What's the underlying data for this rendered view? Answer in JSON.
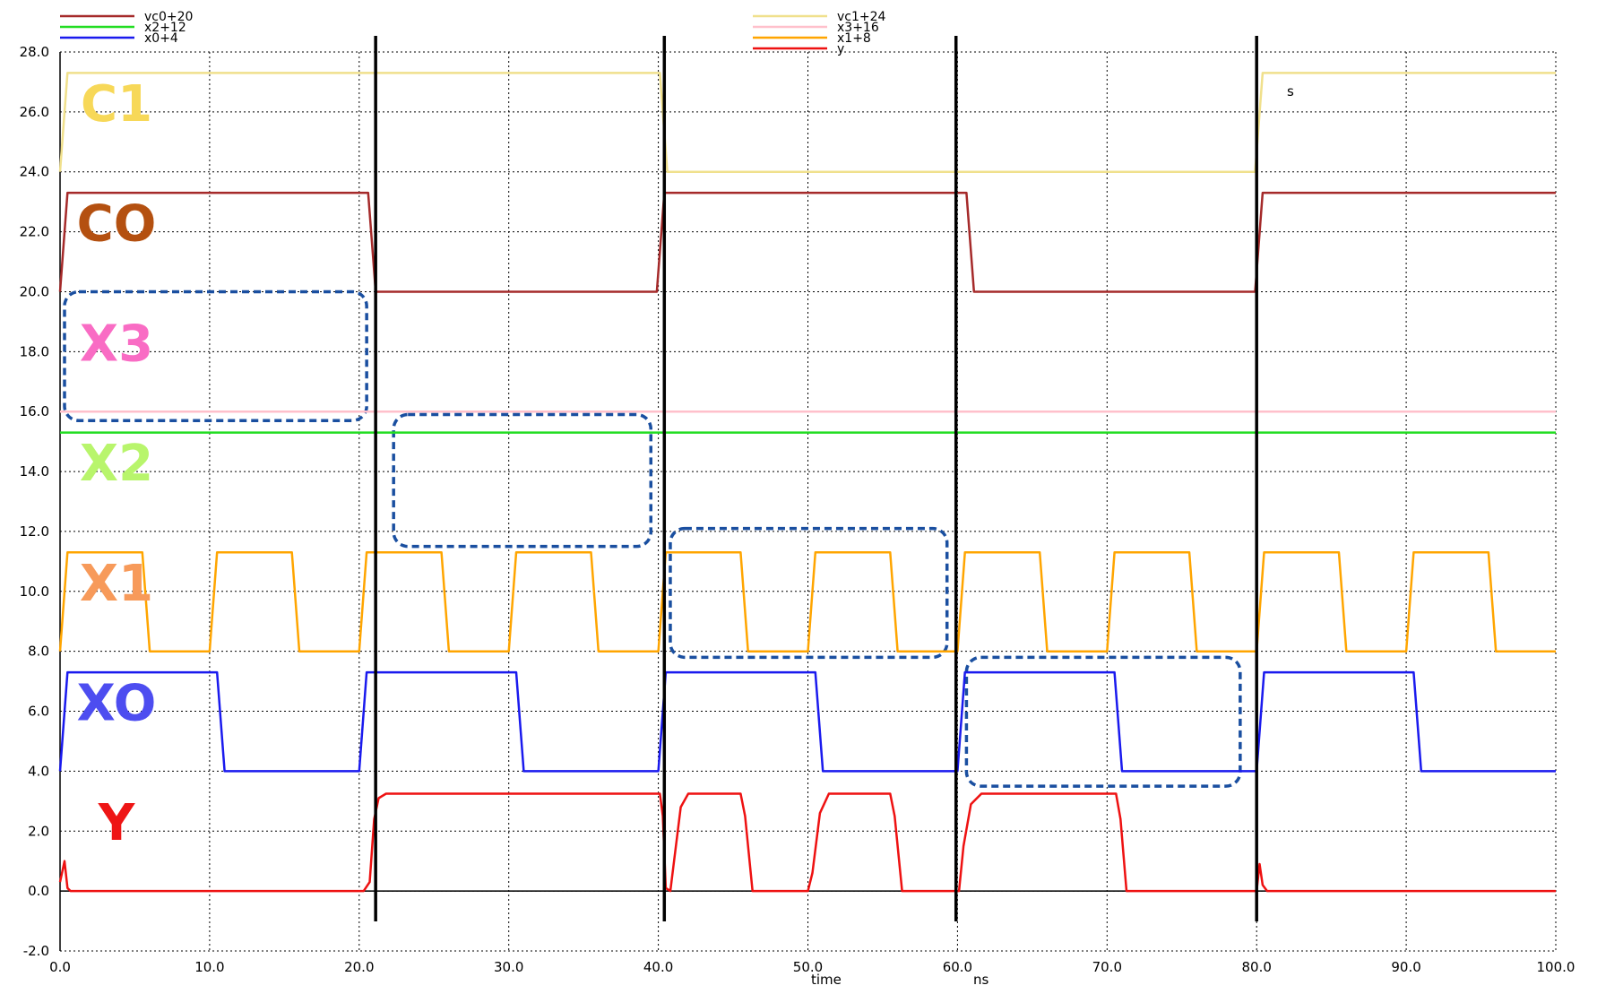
{
  "chart_data": {
    "type": "line",
    "xlabel": "time",
    "xunit": "ns",
    "xlim": [
      0,
      100
    ],
    "ylim": [
      -2,
      28
    ],
    "xticks": [
      "0.0",
      "10.0",
      "20.0",
      "30.0",
      "40.0",
      "50.0",
      "60.0",
      "70.0",
      "80.0",
      "90.0",
      "100.0"
    ],
    "yticks": [
      "-2.0",
      "0.0",
      "2.0",
      "4.0",
      "6.0",
      "8.0",
      "10.0",
      "12.0",
      "14.0",
      "16.0",
      "18.0",
      "20.0",
      "22.0",
      "24.0",
      "26.0",
      "28.0"
    ],
    "grid": true,
    "legend": [
      {
        "name": "vc0+20",
        "color": "#a52a2a"
      },
      {
        "name": "x2+12",
        "color": "#22dd22"
      },
      {
        "name": "x0+4",
        "color": "#1a1aee"
      },
      {
        "name": "vc1+24",
        "color": "#f0e08c"
      },
      {
        "name": "x3+16",
        "color": "#ffc0cb"
      },
      {
        "name": "x1+8",
        "color": "#ffa500"
      },
      {
        "name": "y",
        "color": "#ee1111"
      }
    ],
    "series": [
      {
        "name": "vc1+24",
        "color": "#f0e08c",
        "points": [
          [
            0,
            24
          ],
          [
            0.5,
            27.3
          ],
          [
            40.1,
            27.3
          ],
          [
            40.6,
            24
          ],
          [
            79.9,
            24
          ],
          [
            80.4,
            27.3
          ],
          [
            100,
            27.3
          ]
        ]
      },
      {
        "name": "vc0+20",
        "color": "#a52a2a",
        "points": [
          [
            0,
            20
          ],
          [
            0.5,
            23.3
          ],
          [
            20.6,
            23.3
          ],
          [
            21.1,
            20
          ],
          [
            39.9,
            20
          ],
          [
            40.4,
            23.3
          ],
          [
            60.6,
            23.3
          ],
          [
            61.1,
            20
          ],
          [
            79.9,
            20
          ],
          [
            80.4,
            23.3
          ],
          [
            100,
            23.3
          ]
        ]
      },
      {
        "name": "x3+16",
        "color": "#ffc0cb",
        "points": [
          [
            0,
            16
          ],
          [
            100,
            16
          ]
        ]
      },
      {
        "name": "x2+12",
        "color": "#22dd22",
        "points": [
          [
            0,
            15.3
          ],
          [
            100,
            15.3
          ]
        ]
      },
      {
        "name": "x1+8",
        "color": "#ffa500",
        "points": [
          [
            0,
            8
          ],
          [
            0.5,
            11.3
          ],
          [
            5.5,
            11.3
          ],
          [
            6,
            8
          ],
          [
            10,
            8
          ],
          [
            10.5,
            11.3
          ],
          [
            15.5,
            11.3
          ],
          [
            16,
            8
          ],
          [
            20,
            8
          ],
          [
            20.5,
            11.3
          ],
          [
            25.5,
            11.3
          ],
          [
            26,
            8
          ],
          [
            30,
            8
          ],
          [
            30.5,
            11.3
          ],
          [
            35.5,
            11.3
          ],
          [
            36,
            8
          ],
          [
            40,
            8
          ],
          [
            40.5,
            11.3
          ],
          [
            45.5,
            11.3
          ],
          [
            46,
            8
          ],
          [
            50,
            8
          ],
          [
            50.5,
            11.3
          ],
          [
            55.5,
            11.3
          ],
          [
            56,
            8
          ],
          [
            60,
            8
          ],
          [
            60.5,
            11.3
          ],
          [
            65.5,
            11.3
          ],
          [
            66,
            8
          ],
          [
            70,
            8
          ],
          [
            70.5,
            11.3
          ],
          [
            75.5,
            11.3
          ],
          [
            76,
            8
          ],
          [
            80,
            8
          ],
          [
            80.5,
            11.3
          ],
          [
            85.5,
            11.3
          ],
          [
            86,
            8
          ],
          [
            90,
            8
          ],
          [
            90.5,
            11.3
          ],
          [
            95.5,
            11.3
          ],
          [
            96,
            8
          ],
          [
            100,
            8
          ]
        ]
      },
      {
        "name": "x0+4",
        "color": "#1a1aee",
        "points": [
          [
            0,
            4
          ],
          [
            0.5,
            7.3
          ],
          [
            10.5,
            7.3
          ],
          [
            11,
            4
          ],
          [
            20,
            4
          ],
          [
            20.5,
            7.3
          ],
          [
            30.5,
            7.3
          ],
          [
            31,
            4
          ],
          [
            40,
            4
          ],
          [
            40.5,
            7.3
          ],
          [
            50.5,
            7.3
          ],
          [
            51,
            4
          ],
          [
            60,
            4
          ],
          [
            60.5,
            7.3
          ],
          [
            70.5,
            7.3
          ],
          [
            71,
            4
          ],
          [
            80,
            4
          ],
          [
            80.5,
            7.3
          ],
          [
            90.5,
            7.3
          ],
          [
            91,
            4
          ],
          [
            100,
            4
          ]
        ]
      },
      {
        "name": "y",
        "color": "#ee1111",
        "points": [
          [
            0,
            0.3
          ],
          [
            0.3,
            1
          ],
          [
            0.5,
            0.1
          ],
          [
            0.7,
            0
          ],
          [
            20.3,
            0
          ],
          [
            20.7,
            0.3
          ],
          [
            21,
            2.4
          ],
          [
            21.3,
            3.1
          ],
          [
            21.8,
            3.25
          ],
          [
            40.1,
            3.25
          ],
          [
            40.3,
            2.5
          ],
          [
            40.5,
            0.1
          ],
          [
            40.8,
            0
          ],
          [
            41,
            0.8
          ],
          [
            41.5,
            2.8
          ],
          [
            42,
            3.25
          ],
          [
            45.5,
            3.25
          ],
          [
            45.8,
            2.5
          ],
          [
            46.3,
            0
          ],
          [
            50,
            0
          ],
          [
            50.3,
            0.6
          ],
          [
            50.8,
            2.6
          ],
          [
            51.4,
            3.25
          ],
          [
            55.5,
            3.25
          ],
          [
            55.8,
            2.5
          ],
          [
            56.3,
            0
          ],
          [
            60.1,
            0
          ],
          [
            60.4,
            1.5
          ],
          [
            60.9,
            2.9
          ],
          [
            61.6,
            3.25
          ],
          [
            70.6,
            3.25
          ],
          [
            70.9,
            2.4
          ],
          [
            71.3,
            0
          ],
          [
            80,
            0
          ],
          [
            80.2,
            0.9
          ],
          [
            80.4,
            0.2
          ],
          [
            80.7,
            0
          ],
          [
            100,
            0
          ]
        ]
      }
    ],
    "markers": [
      21.1,
      40.4,
      59.9,
      80.0
    ],
    "annotations": [
      "s"
    ],
    "signal_labels": [
      {
        "text": "C1",
        "color": "#f7d858"
      },
      {
        "text": "CO",
        "color": "#b45010"
      },
      {
        "text": "X3",
        "color": "#f96cc4"
      },
      {
        "text": "X2",
        "color": "#b8f56c"
      },
      {
        "text": "X1",
        "color": "#f79a5a"
      },
      {
        "text": "XO",
        "color": "#4d4df0"
      },
      {
        "text": "Y",
        "color": "#ee1515"
      }
    ],
    "highlight_color": "#1a4fa0"
  }
}
